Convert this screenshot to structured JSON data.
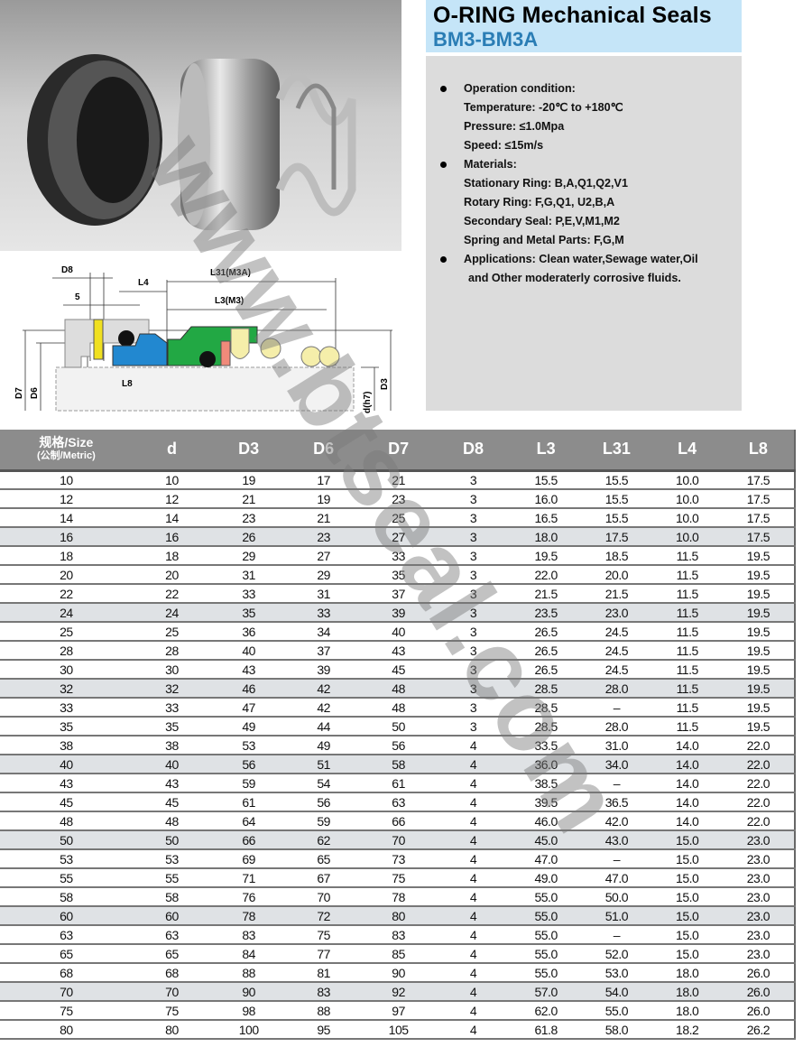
{
  "title": {
    "line1": "O-RING Mechanical Seals",
    "line2": "BM3-BM3A"
  },
  "colors": {
    "title_bg": "#c5e5f8",
    "title_accent": "#2a7db5",
    "spec_bg": "#dcdcdc",
    "header_bg": "#8c8c8c",
    "row_shade": "#dfe2e5",
    "rotary_ring": "#2288d0",
    "seat_body": "#22a844",
    "spring": "#f5eeaa",
    "pin": "#f0e020"
  },
  "specs": {
    "operation_heading": "Operation condition:",
    "temperature": "Temperature: -20℃ to +180℃",
    "pressure": "Pressure: ≤1.0Mpa",
    "speed": "Speed: ≤15m/s",
    "materials_heading": "Materials:",
    "stationary_ring": "Stationary Ring: B,A,Q1,Q2,V1",
    "rotary_ring": "Rotary Ring: F,G,Q1, U2,B,A",
    "secondary_seal": "Secondary Seal: P,E,V,M1,M2",
    "spring_parts": "Spring and Metal Parts: F,G,M",
    "applications_line1": "Applications: Clean water,Sewage water,Oil",
    "applications_line2": "and Other moderaterly corrosive fluids."
  },
  "diagram_labels": {
    "d8": "D8",
    "five": "5",
    "l4": "L4",
    "l31": "L31(M3A)",
    "l3": "L3(M3)",
    "l8": "L8",
    "d7": "D7",
    "d6": "D6",
    "d": "d(h7)",
    "d3": "D3"
  },
  "watermark": "www.btseal.com",
  "table": {
    "headers": [
      "规格/Size",
      "d",
      "D3",
      "D6",
      "D7",
      "D8",
      "L3",
      "L31",
      "L4",
      "L8"
    ],
    "size_subheader": "(公制/Metric)",
    "rows": [
      [
        "10",
        "10",
        "19",
        "17",
        "21",
        "3",
        "15.5",
        "15.5",
        "10.0",
        "17.5"
      ],
      [
        "12",
        "12",
        "21",
        "19",
        "23",
        "3",
        "16.0",
        "15.5",
        "10.0",
        "17.5"
      ],
      [
        "14",
        "14",
        "23",
        "21",
        "25",
        "3",
        "16.5",
        "15.5",
        "10.0",
        "17.5"
      ],
      [
        "16",
        "16",
        "26",
        "23",
        "27",
        "3",
        "18.0",
        "17.5",
        "10.0",
        "17.5"
      ],
      [
        "18",
        "18",
        "29",
        "27",
        "33",
        "3",
        "19.5",
        "18.5",
        "11.5",
        "19.5"
      ],
      [
        "20",
        "20",
        "31",
        "29",
        "35",
        "3",
        "22.0",
        "20.0",
        "11.5",
        "19.5"
      ],
      [
        "22",
        "22",
        "33",
        "31",
        "37",
        "3",
        "21.5",
        "21.5",
        "11.5",
        "19.5"
      ],
      [
        "24",
        "24",
        "35",
        "33",
        "39",
        "3",
        "23.5",
        "23.0",
        "11.5",
        "19.5"
      ],
      [
        "25",
        "25",
        "36",
        "34",
        "40",
        "3",
        "26.5",
        "24.5",
        "11.5",
        "19.5"
      ],
      [
        "28",
        "28",
        "40",
        "37",
        "43",
        "3",
        "26.5",
        "24.5",
        "11.5",
        "19.5"
      ],
      [
        "30",
        "30",
        "43",
        "39",
        "45",
        "3",
        "26.5",
        "24.5",
        "11.5",
        "19.5"
      ],
      [
        "32",
        "32",
        "46",
        "42",
        "48",
        "3",
        "28.5",
        "28.0",
        "11.5",
        "19.5"
      ],
      [
        "33",
        "33",
        "47",
        "42",
        "48",
        "3",
        "28.5",
        "–",
        "11.5",
        "19.5"
      ],
      [
        "35",
        "35",
        "49",
        "44",
        "50",
        "3",
        "28.5",
        "28.0",
        "11.5",
        "19.5"
      ],
      [
        "38",
        "38",
        "53",
        "49",
        "56",
        "4",
        "33.5",
        "31.0",
        "14.0",
        "22.0"
      ],
      [
        "40",
        "40",
        "56",
        "51",
        "58",
        "4",
        "36.0",
        "34.0",
        "14.0",
        "22.0"
      ],
      [
        "43",
        "43",
        "59",
        "54",
        "61",
        "4",
        "38.5",
        "–",
        "14.0",
        "22.0"
      ],
      [
        "45",
        "45",
        "61",
        "56",
        "63",
        "4",
        "39.5",
        "36.5",
        "14.0",
        "22.0"
      ],
      [
        "48",
        "48",
        "64",
        "59",
        "66",
        "4",
        "46.0",
        "42.0",
        "14.0",
        "22.0"
      ],
      [
        "50",
        "50",
        "66",
        "62",
        "70",
        "4",
        "45.0",
        "43.0",
        "15.0",
        "23.0"
      ],
      [
        "53",
        "53",
        "69",
        "65",
        "73",
        "4",
        "47.0",
        "–",
        "15.0",
        "23.0"
      ],
      [
        "55",
        "55",
        "71",
        "67",
        "75",
        "4",
        "49.0",
        "47.0",
        "15.0",
        "23.0"
      ],
      [
        "58",
        "58",
        "76",
        "70",
        "78",
        "4",
        "55.0",
        "50.0",
        "15.0",
        "23.0"
      ],
      [
        "60",
        "60",
        "78",
        "72",
        "80",
        "4",
        "55.0",
        "51.0",
        "15.0",
        "23.0"
      ],
      [
        "63",
        "63",
        "83",
        "75",
        "83",
        "4",
        "55.0",
        "–",
        "15.0",
        "23.0"
      ],
      [
        "65",
        "65",
        "84",
        "77",
        "85",
        "4",
        "55.0",
        "52.0",
        "15.0",
        "23.0"
      ],
      [
        "68",
        "68",
        "88",
        "81",
        "90",
        "4",
        "55.0",
        "53.0",
        "18.0",
        "26.0"
      ],
      [
        "70",
        "70",
        "90",
        "83",
        "92",
        "4",
        "57.0",
        "54.0",
        "18.0",
        "26.0"
      ],
      [
        "75",
        "75",
        "98",
        "88",
        "97",
        "4",
        "62.0",
        "55.0",
        "18.0",
        "26.0"
      ],
      [
        "80",
        "80",
        "100",
        "95",
        "105",
        "4",
        "61.8",
        "58.0",
        "18.2",
        "26.2"
      ]
    ],
    "shaded_rows": [
      "16",
      "24",
      "32",
      "40",
      "50",
      "60",
      "70"
    ]
  }
}
